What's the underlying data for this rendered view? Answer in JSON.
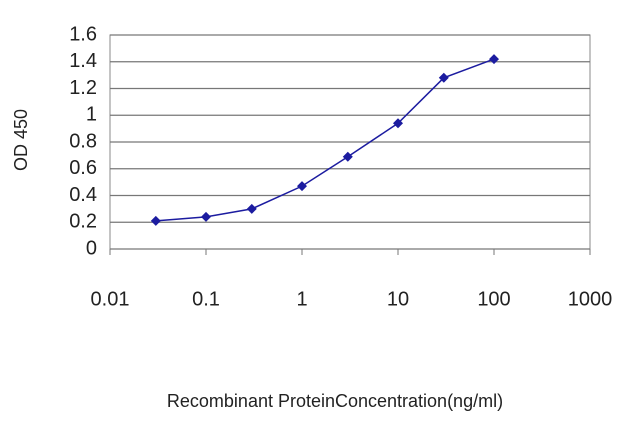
{
  "chart_data": {
    "type": "line",
    "x": [
      0.03,
      0.1,
      0.3,
      1,
      3,
      10,
      30,
      100
    ],
    "values": [
      0.21,
      0.24,
      0.3,
      0.47,
      0.69,
      0.94,
      1.28,
      1.42
    ],
    "color": "#1c1ca0",
    "xscale": "log",
    "xlim": [
      0.01,
      1000
    ],
    "xticks": [
      0.01,
      0.1,
      1,
      10,
      100,
      1000
    ],
    "ylim": [
      0,
      1.6
    ],
    "yticks": [
      0,
      0.2,
      0.4,
      0.6,
      0.8,
      1,
      1.2,
      1.4,
      1.6
    ],
    "grid": true,
    "xlabel": "Recombinant ProteinConcentration(ng/ml)",
    "ylabel": "OD 450"
  }
}
